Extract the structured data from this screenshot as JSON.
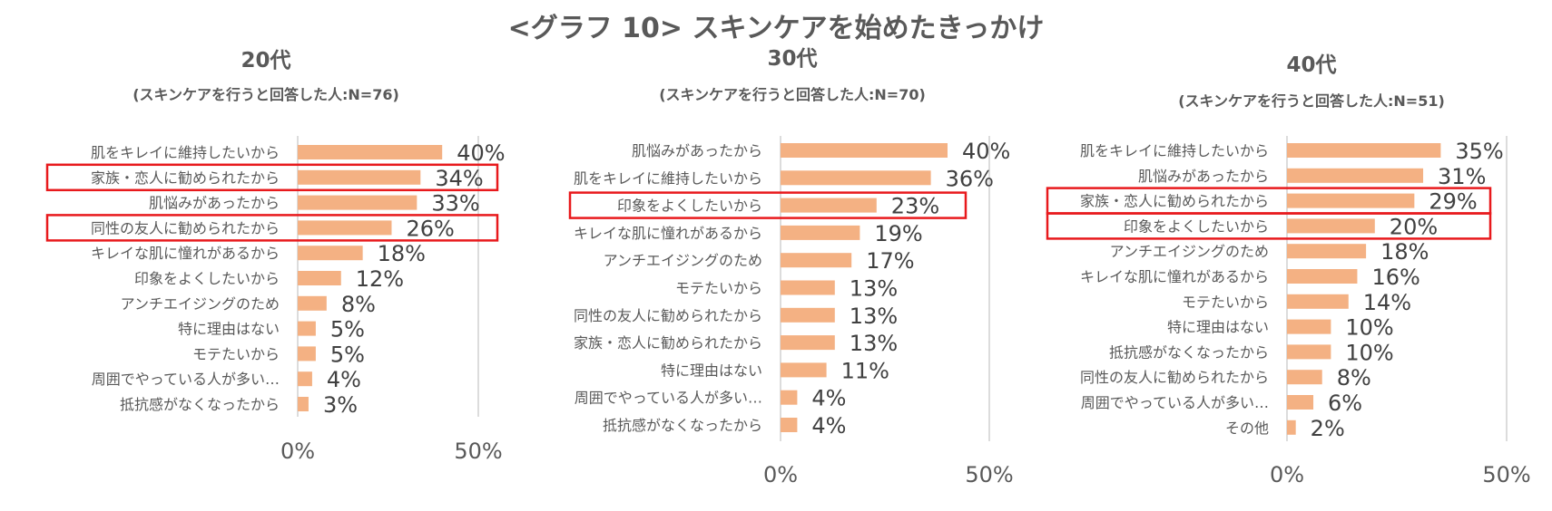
{
  "title": "<グラフ 10> スキンケアを始めたきっかけ",
  "colors": {
    "bar": "#F4B183",
    "highlight": "#E8191C",
    "axis": "#D0D0D0"
  },
  "chart_data": [
    {
      "type": "bar",
      "orientation": "horizontal",
      "title": "20代",
      "subtitle": "(スキンケアを行うと回答した人:N=76)",
      "categories": [
        "肌をキレイに維持したいから",
        "家族・恋人に勧められたから",
        "肌悩みがあったから",
        "同性の友人に勧められたから",
        "キレイな肌に憧れがあるから",
        "印象をよくしたいから",
        "アンチエイジングのため",
        "特に理由はない",
        "モテたいから",
        "周囲でやっている人が多い…",
        "抵抗感がなくなったから"
      ],
      "values": [
        40,
        34,
        33,
        26,
        18,
        12,
        8,
        5,
        5,
        4,
        3
      ],
      "value_labels": [
        "40%",
        "34%",
        "33%",
        "26%",
        "18%",
        "12%",
        "8%",
        "5%",
        "5%",
        "4%",
        "3%"
      ],
      "xlim": [
        0,
        50
      ],
      "x_ticks": [
        "0%",
        "50%"
      ],
      "highlighted": [
        "家族・恋人に勧められたから",
        "同性の友人に勧められたから"
      ]
    },
    {
      "type": "bar",
      "orientation": "horizontal",
      "title": "30代",
      "subtitle": "(スキンケアを行うと回答した人:N=70)",
      "categories": [
        "肌悩みがあったから",
        "肌をキレイに維持したいから",
        "印象をよくしたいから",
        "キレイな肌に憧れがあるから",
        "アンチエイジングのため",
        "モテたいから",
        "同性の友人に勧められたから",
        "家族・恋人に勧められたから",
        "特に理由はない",
        "周囲でやっている人が多い…",
        "抵抗感がなくなったから"
      ],
      "values": [
        40,
        36,
        23,
        19,
        17,
        13,
        13,
        13,
        11,
        4,
        4
      ],
      "value_labels": [
        "40%",
        "36%",
        "23%",
        "19%",
        "17%",
        "13%",
        "13%",
        "13%",
        "11%",
        "4%",
        "4%"
      ],
      "xlim": [
        0,
        50
      ],
      "x_ticks": [
        "0%",
        "50%"
      ],
      "highlighted": [
        "印象をよくしたいから"
      ]
    },
    {
      "type": "bar",
      "orientation": "horizontal",
      "title": "40代",
      "subtitle": "(スキンケアを行うと回答した人:N=51)",
      "categories": [
        "肌をキレイに維持したいから",
        "肌悩みがあったから",
        "家族・恋人に勧められたから",
        "印象をよくしたいから",
        "アンチエイジングのため",
        "キレイな肌に憧れがあるから",
        "モテたいから",
        "特に理由はない",
        "抵抗感がなくなったから",
        "同性の友人に勧められたから",
        "周囲でやっている人が多い…",
        "その他"
      ],
      "values": [
        35,
        31,
        29,
        20,
        18,
        16,
        14,
        10,
        10,
        8,
        6,
        2
      ],
      "value_labels": [
        "35%",
        "31%",
        "29%",
        "20%",
        "18%",
        "16%",
        "14%",
        "10%",
        "10%",
        "8%",
        "6%",
        "2%"
      ],
      "xlim": [
        0,
        50
      ],
      "x_ticks": [
        "0%",
        "50%"
      ],
      "highlighted": [
        "家族・恋人に勧められたから",
        "印象をよくしたいから"
      ]
    }
  ]
}
